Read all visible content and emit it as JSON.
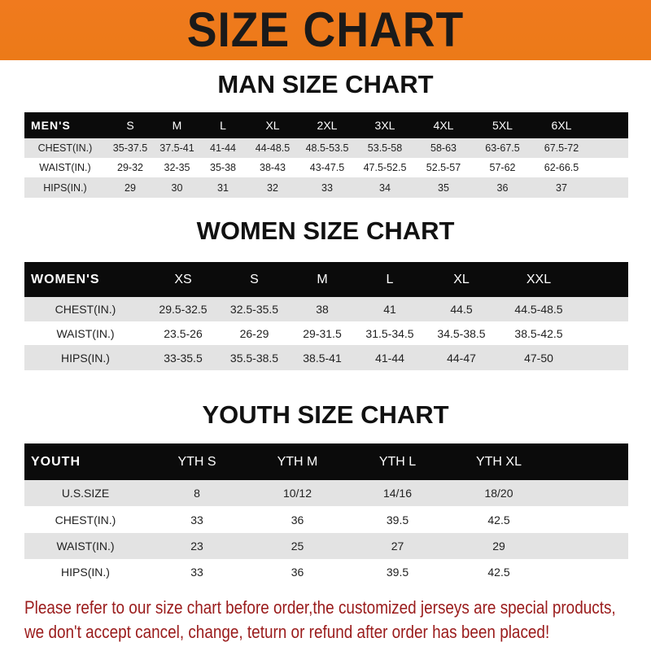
{
  "banner_title": "SIZE CHART",
  "men": {
    "title": "MAN SIZE CHART",
    "header": [
      "MEN'S",
      "S",
      "M",
      "L",
      "XL",
      "2XL",
      "3XL",
      "4XL",
      "5XL",
      "6XL"
    ],
    "rows": [
      [
        "CHEST(IN.)",
        "35-37.5",
        "37.5-41",
        "41-44",
        "44-48.5",
        "48.5-53.5",
        "53.5-58",
        "58-63",
        "63-67.5",
        "67.5-72"
      ],
      [
        "WAIST(IN.)",
        "29-32",
        "32-35",
        "35-38",
        "38-43",
        "43-47.5",
        "47.5-52.5",
        "52.5-57",
        "57-62",
        "62-66.5"
      ],
      [
        "HIPS(IN.)",
        "29",
        "30",
        "31",
        "32",
        "33",
        "34",
        "35",
        "36",
        "37"
      ]
    ]
  },
  "women": {
    "title": "WOMEN SIZE CHART",
    "header": [
      "WOMEN'S",
      "XS",
      "S",
      "M",
      "L",
      "XL",
      "XXL"
    ],
    "rows": [
      [
        "CHEST(IN.)",
        "29.5-32.5",
        "32.5-35.5",
        "38",
        "41",
        "44.5",
        "44.5-48.5"
      ],
      [
        "WAIST(IN.)",
        "23.5-26",
        "26-29",
        "29-31.5",
        "31.5-34.5",
        "34.5-38.5",
        "38.5-42.5"
      ],
      [
        "HIPS(IN.)",
        "33-35.5",
        "35.5-38.5",
        "38.5-41",
        "41-44",
        "44-47",
        "47-50"
      ]
    ]
  },
  "youth": {
    "title": "YOUTH SIZE CHART",
    "header": [
      "YOUTH",
      "YTH S",
      "YTH M",
      "YTH L",
      "YTH XL"
    ],
    "rows": [
      [
        "U.S.SIZE",
        "8",
        "10/12",
        "14/16",
        "18/20"
      ],
      [
        "CHEST(IN.)",
        "33",
        "36",
        "39.5",
        "42.5"
      ],
      [
        "WAIST(IN.)",
        "23",
        "25",
        "27",
        "29"
      ],
      [
        "HIPS(IN.)",
        "33",
        "36",
        "39.5",
        "42.5"
      ]
    ]
  },
  "note": {
    "line1": "Please refer to our size chart before order,the customized jerseys are special products,",
    "line2": "we don't accept cancel, change, teturn or refund after order has been placed!"
  },
  "colors": {
    "banner": "#ec7a18",
    "header_row": "#0b0b0b",
    "stripe": "#e3e3e3",
    "note": "#9a1b1b"
  }
}
